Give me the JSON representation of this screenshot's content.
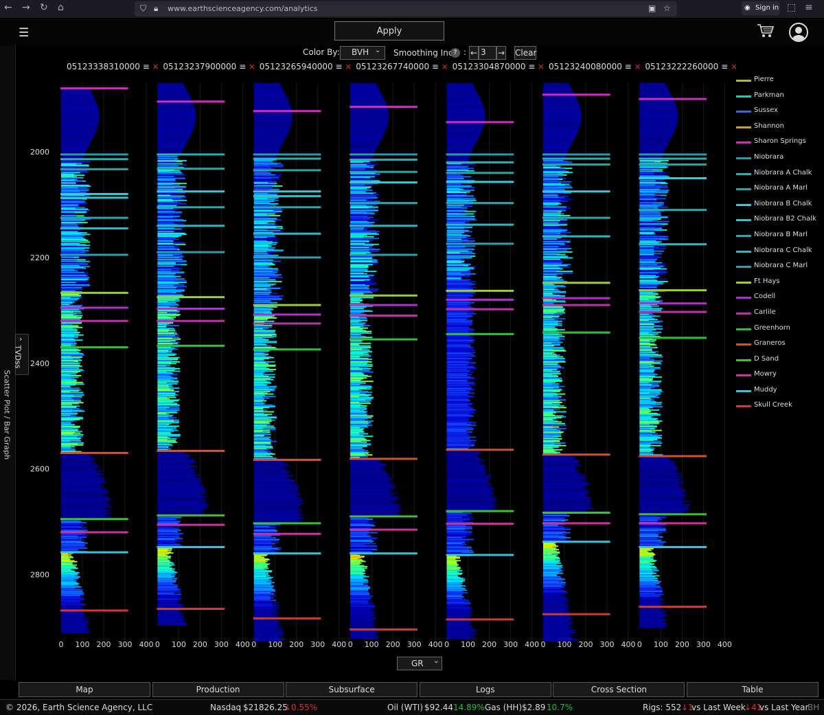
{
  "browser": {
    "url": "www.earthscienceagency.com/analytics",
    "signin_label": "Sign in"
  },
  "header": {
    "apply_label": "Apply",
    "menu_icon": "hamburger-icon",
    "cart_icon": "cart-icon",
    "account_icon": "user-circle-icon"
  },
  "controls": {
    "color_by_label": "Color By:",
    "color_by_value": "BVH",
    "smoothing_label": "Smoothing Inc",
    "help_glyph": "?",
    "smoothing_value": "3",
    "left_arrow": "←",
    "right_arrow": "→",
    "clear_label": "Clear",
    "colon": ":"
  },
  "side_panel": {
    "label": "Scatter Plot / Bar Graph",
    "axis_select": "TVDss",
    "chevron": "›"
  },
  "curve_select": "GR",
  "chart_data": {
    "type": "well-log-bar",
    "y_axis": {
      "label": "TVDss",
      "range": [
        1870,
        2920
      ],
      "ticks": [
        2000,
        2200,
        2400,
        2600,
        2800
      ],
      "inverted": true
    },
    "x_axis": {
      "curve": "GR",
      "range": [
        0,
        400
      ],
      "ticks": [
        0,
        100,
        200,
        300,
        400
      ]
    },
    "color_by": "BVH",
    "wells": [
      {
        "uwi": "05123338310000",
        "range": [
          1880,
          2910
        ],
        "tops": {
          "Sharon Springs": 1880,
          "Niobrara": 2005,
          "Niobrara A Chalk": 2014,
          "Niobrara A Marl": 2033,
          "Niobrara B Chalk": 2080,
          "Niobrara B2 Chalk": 2087,
          "Niobrara B Marl": 2125,
          "Niobrara C Chalk": 2145,
          "Niobrara C Marl": 2195,
          "Ft Hays": 2267,
          "Codell": 2295,
          "Carlile": 2320,
          "Greenhorn": 2370,
          "Graneros": 2570,
          "D Sand": 2695,
          "Mowry": 2720,
          "Muddy": 2758,
          "Skull Creek": 2868
        }
      },
      {
        "uwi": "05123237900000",
        "range": [
          1870,
          2895
        ],
        "tops": {
          "Sharon Springs": 1905,
          "Niobrara A Chalk": 2005,
          "Niobrara A Marl": 2032,
          "Niobrara B Chalk": 2075,
          "Niobrara B Marl": 2105,
          "Niobrara C Chalk": 2140,
          "Niobrara C Marl": 2190,
          "Ft Hays": 2275,
          "Codell": 2297,
          "Carlile": 2320,
          "Greenhorn": 2367,
          "Graneros": 2566,
          "D Sand": 2688,
          "Mowry": 2706,
          "Muddy": 2748,
          "Skull Creek": 2865
        }
      },
      {
        "uwi": "05123265940000",
        "range": [
          1870,
          2925
        ],
        "tops": {
          "Sharon Springs": 1923,
          "Niobrara": 2005,
          "Niobrara A Chalk": 2013,
          "Niobrara A Marl": 2035,
          "Niobrara B Chalk": 2075,
          "Niobrara B2 Chalk": 2084,
          "Niobrara B Marl": 2105,
          "Niobrara C Chalk": 2155,
          "Niobrara C Marl": 2200,
          "Ft Hays": 2290,
          "Codell": 2308,
          "Carlile": 2325,
          "Greenhorn": 2374,
          "Graneros": 2583,
          "D Sand": 2703,
          "Mowry": 2723,
          "Muddy": 2760,
          "Skull Creek": 2883
        }
      },
      {
        "uwi": "05123267740000",
        "range": [
          1870,
          2920
        ],
        "tops": {
          "Sharon Springs": 1915,
          "Niobrara": 2005,
          "Niobrara A Chalk": 2015,
          "Niobrara A Marl": 2038,
          "Niobrara B Chalk": 2058,
          "Niobrara B Marl": 2097,
          "Niobrara C Chalk": 2140,
          "Niobrara C Marl": 2195,
          "Ft Hays": 2272,
          "Codell": 2290,
          "Carlile": 2310,
          "Greenhorn": 2355,
          "Graneros": 2581,
          "D Sand": 2690,
          "Mowry": 2715,
          "Muddy": 2760,
          "Skull Creek": 2904
        }
      },
      {
        "uwi": "05123304870000",
        "range": [
          1870,
          2920
        ],
        "tops": {
          "Sharon Springs": 1944,
          "Niobrara": 2005,
          "Niobrara A Chalk": 2020,
          "Niobrara A Marl": 2040,
          "Niobrara B Chalk": 2057,
          "Niobrara B Marl": 2097,
          "Niobrara C Chalk": 2138,
          "Niobrara C Marl": 2174,
          "Ft Hays": 2263,
          "Codell": 2280,
          "Carlile": 2298,
          "Greenhorn": 2345,
          "Graneros": 2564,
          "D Sand": 2680,
          "Mowry": 2704,
          "Muddy": 2763,
          "Skull Creek": 2885
        }
      },
      {
        "uwi": "05123240080000",
        "range": [
          1870,
          2925
        ],
        "tops": {
          "Sharon Springs": 1892,
          "Niobrara": 2005,
          "Niobrara A Chalk": 2013,
          "Niobrara A Marl": 2024,
          "Niobrara B Chalk": 2075,
          "Niobrara B Marl": 2125,
          "Niobrara C Chalk": 2160,
          "Ft Hays": 2248,
          "Codell": 2277,
          "Carlile": 2290,
          "Greenhorn": 2342,
          "Graneros": 2573,
          "D Sand": 2683,
          "Mowry": 2703,
          "Muddy": 2738,
          "Skull Creek": 2875
        }
      },
      {
        "uwi": "05123222260000",
        "range": [
          1870,
          2900
        ],
        "tops": {
          "Sharon Springs": 1900,
          "Niobrara": 2005,
          "Niobrara A Chalk": 2013,
          "Niobrara A Marl": 2024,
          "Niobrara B Chalk": 2050,
          "Niobrara B Marl": 2110,
          "Niobrara C Chalk": 2175,
          "Ft Hays": 2262,
          "Codell": 2287,
          "Carlile": 2303,
          "Greenhorn": 2352,
          "Graneros": 2576,
          "D Sand": 2686,
          "Mowry": 2703,
          "Muddy": 2748,
          "Skull Creek": 2861
        }
      }
    ]
  },
  "legend": [
    {
      "name": "Pierre",
      "color": "#b5b53a"
    },
    {
      "name": "Parkman",
      "color": "#2bc4b8"
    },
    {
      "name": "Sussex",
      "color": "#3a6ad6"
    },
    {
      "name": "Shannon",
      "color": "#c8a030"
    },
    {
      "name": "Sharon Springs",
      "color": "#d02cc0"
    },
    {
      "name": "Niobrara",
      "color": "#2a9aa8"
    },
    {
      "name": "Niobrara A Chalk",
      "color": "#2bb0b0"
    },
    {
      "name": "Niobrara A Marl",
      "color": "#2aa4a0"
    },
    {
      "name": "Niobrara B Chalk",
      "color": "#38c8d8"
    },
    {
      "name": "Niobrara B2 Chalk",
      "color": "#36c0c8"
    },
    {
      "name": "Niobrara B Marl",
      "color": "#28a8b0"
    },
    {
      "name": "Niobrara C Chalk",
      "color": "#2cb8c0"
    },
    {
      "name": "Niobrara C Marl",
      "color": "#2ca0b0"
    },
    {
      "name": "Ft Hays",
      "color": "#9ad030"
    },
    {
      "name": "Codell",
      "color": "#b030d0"
    },
    {
      "name": "Carlile",
      "color": "#c030a8"
    },
    {
      "name": "Greenhorn",
      "color": "#30c038"
    },
    {
      "name": "Graneros",
      "color": "#d05030"
    },
    {
      "name": "D Sand",
      "color": "#40c030"
    },
    {
      "name": "Mowry",
      "color": "#d030a0"
    },
    {
      "name": "Muddy",
      "color": "#30c8d8"
    },
    {
      "name": "Skull Creek",
      "color": "#d03830"
    }
  ],
  "tabs": [
    "Map",
    "Production",
    "Subsurface",
    "Logs",
    "Cross Section",
    "Table"
  ],
  "status": {
    "copyright": "© 2026, Earth Science Agency, LLC",
    "nasdaq_label": "Nasdaq",
    "nasdaq_value": "$21826.25",
    "nasdaq_change": "↓0.55%",
    "oil_label": "Oil (WTI)",
    "oil_value": "$92.44",
    "oil_change": "14.89%",
    "gas_label": "Gas (HH)",
    "gas_value": "$2.89",
    "gas_change": "10.7%",
    "rigs_label": "Rigs: 552",
    "rigs_week_change": "↓1",
    "rigs_week_label": "vs Last Week",
    "rigs_year_change": "↓41",
    "rigs_year_label": "vs Last Year",
    "rigs_suffix": "BH"
  }
}
